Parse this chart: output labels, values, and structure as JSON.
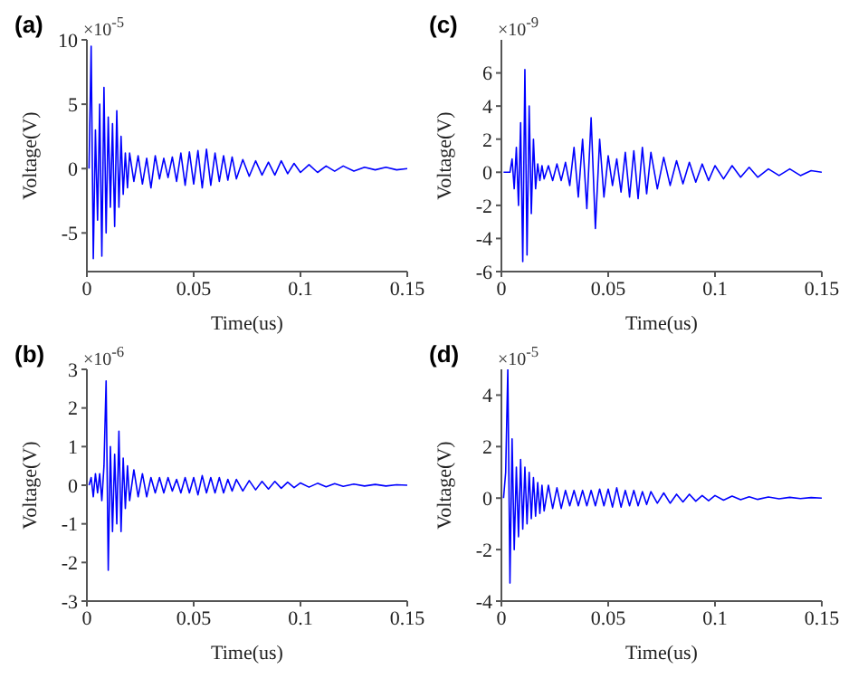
{
  "chart_data": [
    {
      "type": "line",
      "title": "(a)",
      "xlabel": "Time(us)",
      "ylabel": "Voltage(V)",
      "annotations": [
        "×10$^{-5}$"
      ],
      "xlim": [
        0,
        0.15
      ],
      "xticks": [
        0,
        0.05,
        0.1,
        0.15
      ],
      "ylim": [
        -8,
        10
      ],
      "yticks": [
        -5,
        0,
        5,
        10
      ],
      "grid": false,
      "legend": false,
      "marker": "none",
      "x": [
        0.001,
        0.002,
        0.003,
        0.004,
        0.005,
        0.006,
        0.007,
        0.008,
        0.009,
        0.01,
        0.011,
        0.012,
        0.013,
        0.014,
        0.015,
        0.016,
        0.017,
        0.018,
        0.019,
        0.02,
        0.022,
        0.024,
        0.026,
        0.028,
        0.03,
        0.032,
        0.034,
        0.036,
        0.038,
        0.04,
        0.042,
        0.044,
        0.046,
        0.048,
        0.05,
        0.052,
        0.054,
        0.056,
        0.058,
        0.06,
        0.062,
        0.064,
        0.066,
        0.068,
        0.07,
        0.073,
        0.076,
        0.079,
        0.082,
        0.085,
        0.088,
        0.091,
        0.094,
        0.097,
        0.1,
        0.104,
        0.108,
        0.112,
        0.116,
        0.12,
        0.125,
        0.13,
        0.135,
        0.14,
        0.145,
        0.15
      ],
      "series": [
        {
          "color": "#0000ff",
          "values": [
            0,
            9.5,
            -7,
            3,
            -4,
            5,
            -6.8,
            6.3,
            -5,
            4,
            -3,
            3.5,
            -4.5,
            4.5,
            -3,
            2.5,
            -2,
            1.2,
            -1.5,
            1.2,
            -1,
            1,
            -1.2,
            0.8,
            -1.5,
            1,
            -0.8,
            0.8,
            -0.7,
            0.9,
            -1,
            1.2,
            -1.3,
            1.3,
            -1.2,
            1.4,
            -1.5,
            1.5,
            -1.3,
            1.2,
            -1,
            1,
            -0.9,
            0.9,
            -0.8,
            0.7,
            -0.6,
            0.6,
            -0.5,
            0.5,
            -0.5,
            0.6,
            -0.4,
            0.4,
            -0.3,
            0.3,
            -0.3,
            0.2,
            -0.2,
            0.2,
            -0.2,
            0.1,
            -0.1,
            0.1,
            -0.1,
            0
          ]
        }
      ]
    },
    {
      "type": "line",
      "title": "(c)",
      "xlabel": "Time(us)",
      "ylabel": "Voltage(V)",
      "annotations": [
        "×10$^{-9}$"
      ],
      "xlim": [
        0,
        0.15
      ],
      "xticks": [
        0,
        0.05,
        0.1,
        0.15
      ],
      "ylim": [
        -6,
        8
      ],
      "yticks": [
        -6,
        -4,
        -2,
        0,
        2,
        4,
        6
      ],
      "grid": false,
      "legend": false,
      "marker": "none",
      "x": [
        0.001,
        0.002,
        0.003,
        0.004,
        0.005,
        0.006,
        0.007,
        0.008,
        0.009,
        0.01,
        0.011,
        0.012,
        0.013,
        0.014,
        0.015,
        0.016,
        0.017,
        0.018,
        0.019,
        0.02,
        0.022,
        0.024,
        0.026,
        0.028,
        0.03,
        0.032,
        0.034,
        0.036,
        0.038,
        0.04,
        0.042,
        0.044,
        0.046,
        0.048,
        0.05,
        0.052,
        0.054,
        0.056,
        0.058,
        0.06,
        0.062,
        0.064,
        0.066,
        0.068,
        0.07,
        0.073,
        0.076,
        0.079,
        0.082,
        0.085,
        0.088,
        0.091,
        0.094,
        0.097,
        0.1,
        0.104,
        0.108,
        0.112,
        0.116,
        0.12,
        0.125,
        0.13,
        0.135,
        0.14,
        0.145,
        0.15
      ],
      "series": [
        {
          "color": "#0000ff",
          "values": [
            0,
            0,
            0,
            0,
            0.8,
            -1,
            1.5,
            -2,
            3,
            -5.4,
            6.2,
            -5,
            4,
            -2.5,
            2,
            -1,
            0.5,
            -0.5,
            0.4,
            -0.4,
            0.4,
            -0.5,
            0.5,
            -0.5,
            0.6,
            -0.8,
            1.5,
            -1.5,
            2,
            -2.2,
            3.3,
            -3.4,
            2,
            -1.5,
            1,
            -0.8,
            0.8,
            -1.2,
            1.2,
            -1.5,
            1.3,
            -1.6,
            1.5,
            -1.3,
            1.2,
            -1,
            0.9,
            -0.8,
            0.7,
            -0.7,
            0.6,
            -0.6,
            0.5,
            -0.5,
            0.4,
            -0.4,
            0.4,
            -0.3,
            0.3,
            -0.3,
            0.2,
            -0.2,
            0.2,
            -0.2,
            0.1,
            0
          ]
        }
      ]
    },
    {
      "type": "line",
      "title": "(b)",
      "xlabel": "Time(us)",
      "ylabel": "Voltage(V)",
      "annotations": [
        "×10$^{-6}$"
      ],
      "xlim": [
        0,
        0.15
      ],
      "xticks": [
        0,
        0.05,
        0.1,
        0.15
      ],
      "ylim": [
        -3,
        3
      ],
      "yticks": [
        -3,
        -2,
        -1,
        0,
        1,
        2,
        3
      ],
      "grid": false,
      "legend": false,
      "marker": "none",
      "x": [
        0.001,
        0.002,
        0.003,
        0.004,
        0.005,
        0.006,
        0.007,
        0.008,
        0.009,
        0.01,
        0.011,
        0.012,
        0.013,
        0.014,
        0.015,
        0.016,
        0.017,
        0.018,
        0.019,
        0.02,
        0.022,
        0.024,
        0.026,
        0.028,
        0.03,
        0.032,
        0.034,
        0.036,
        0.038,
        0.04,
        0.042,
        0.044,
        0.046,
        0.048,
        0.05,
        0.052,
        0.054,
        0.056,
        0.058,
        0.06,
        0.062,
        0.064,
        0.066,
        0.068,
        0.07,
        0.073,
        0.076,
        0.079,
        0.082,
        0.085,
        0.088,
        0.091,
        0.094,
        0.097,
        0.1,
        0.104,
        0.108,
        0.112,
        0.116,
        0.12,
        0.125,
        0.13,
        0.135,
        0.14,
        0.145,
        0.15
      ],
      "series": [
        {
          "color": "#0000ff",
          "values": [
            0,
            0.2,
            -0.3,
            0.3,
            -0.2,
            0.3,
            -0.4,
            0.5,
            2.7,
            -2.2,
            1,
            -1.2,
            0.8,
            -1,
            1.4,
            -1.2,
            0.7,
            -0.6,
            0.5,
            -0.4,
            0.4,
            -0.3,
            0.3,
            -0.3,
            0.2,
            -0.2,
            0.2,
            -0.2,
            0.2,
            -0.15,
            0.15,
            -0.2,
            0.2,
            -0.2,
            0.2,
            -0.25,
            0.25,
            -0.2,
            0.2,
            -0.2,
            0.2,
            -0.2,
            0.15,
            -0.15,
            0.15,
            -0.15,
            0.12,
            -0.12,
            0.1,
            -0.1,
            0.1,
            -0.08,
            0.08,
            -0.06,
            0.06,
            -0.05,
            0.05,
            -0.04,
            0.04,
            -0.03,
            0.03,
            -0.02,
            0.02,
            -0.02,
            0.01,
            0
          ]
        }
      ]
    },
    {
      "type": "line",
      "title": "(d)",
      "xlabel": "Time(us)",
      "ylabel": "Voltage(V)",
      "annotations": [
        "×10$^{-5}$"
      ],
      "xlim": [
        0,
        0.15
      ],
      "xticks": [
        0,
        0.05,
        0.1,
        0.15
      ],
      "ylim": [
        -4,
        5
      ],
      "yticks": [
        -4,
        -2,
        0,
        2,
        4
      ],
      "grid": false,
      "legend": false,
      "marker": "none",
      "x": [
        0.001,
        0.002,
        0.003,
        0.004,
        0.005,
        0.006,
        0.007,
        0.008,
        0.009,
        0.01,
        0.011,
        0.012,
        0.013,
        0.014,
        0.015,
        0.016,
        0.017,
        0.018,
        0.019,
        0.02,
        0.022,
        0.024,
        0.026,
        0.028,
        0.03,
        0.032,
        0.034,
        0.036,
        0.038,
        0.04,
        0.042,
        0.044,
        0.046,
        0.048,
        0.05,
        0.052,
        0.054,
        0.056,
        0.058,
        0.06,
        0.062,
        0.064,
        0.066,
        0.068,
        0.07,
        0.073,
        0.076,
        0.079,
        0.082,
        0.085,
        0.088,
        0.091,
        0.094,
        0.097,
        0.1,
        0.104,
        0.108,
        0.112,
        0.116,
        0.12,
        0.125,
        0.13,
        0.135,
        0.14,
        0.145,
        0.15
      ],
      "series": [
        {
          "color": "#0000ff",
          "values": [
            0,
            1,
            5,
            -3.3,
            2.3,
            -2,
            1.2,
            -1.5,
            1.5,
            -1.2,
            1.2,
            -1,
            1,
            -0.8,
            0.8,
            -0.7,
            0.6,
            -0.6,
            0.5,
            -0.5,
            0.5,
            -0.4,
            0.4,
            -0.4,
            0.3,
            -0.3,
            0.3,
            -0.3,
            0.3,
            -0.3,
            0.3,
            -0.3,
            0.35,
            -0.3,
            0.35,
            -0.35,
            0.4,
            -0.35,
            0.3,
            -0.3,
            0.3,
            -0.3,
            0.25,
            -0.25,
            0.25,
            -0.2,
            0.2,
            -0.2,
            0.15,
            -0.15,
            0.15,
            -0.12,
            0.1,
            -0.1,
            0.1,
            -0.08,
            0.08,
            -0.06,
            0.05,
            -0.05,
            0.04,
            -0.03,
            0.03,
            -0.02,
            0.02,
            0
          ]
        }
      ]
    }
  ]
}
